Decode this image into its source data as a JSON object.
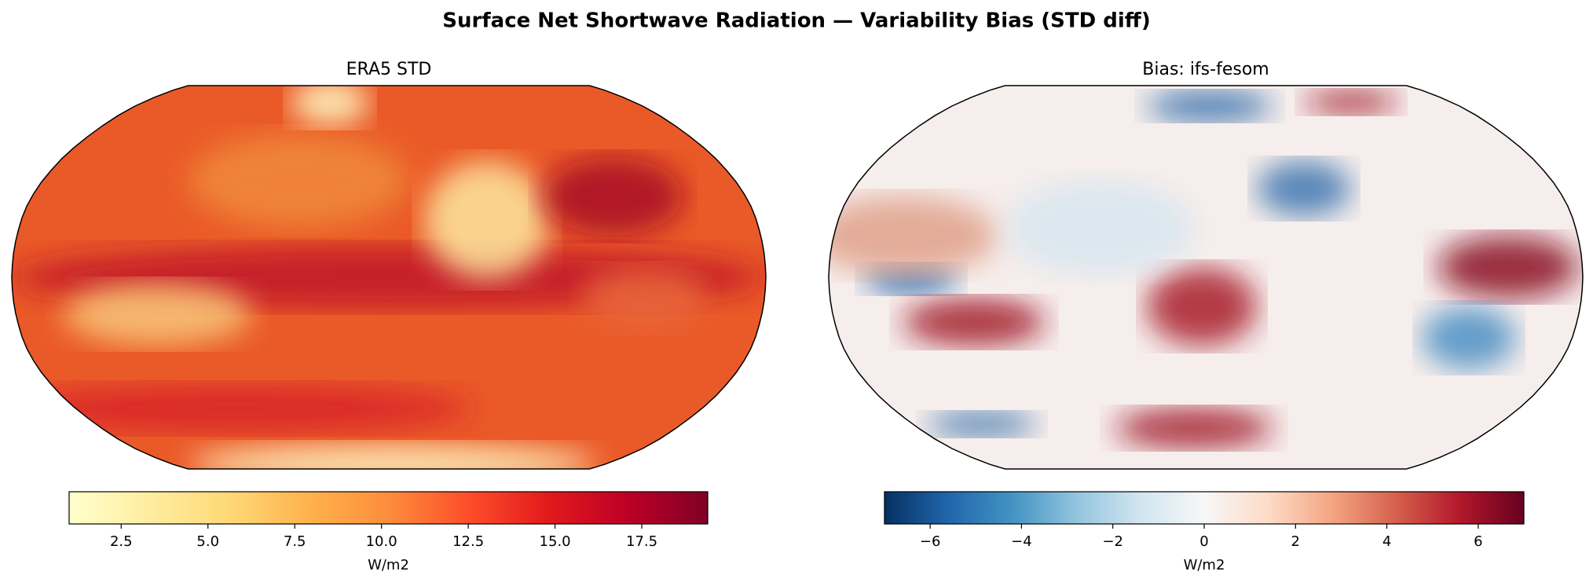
{
  "title": "Surface Net Shortwave Radiation — Variability Bias (STD diff)",
  "panels": [
    {
      "title": "ERA5 STD",
      "colorbar": {
        "label": "W/m2",
        "lim": [
          1,
          19.4
        ],
        "ticks": [
          2.5,
          {
            "value": 5,
            "label": "5.0"
          },
          7.5,
          {
            "value": 10,
            "label": "10.0"
          },
          12.5,
          {
            "value": 15,
            "label": "15.0"
          },
          17.5
        ],
        "colors": [
          "#ffffcc",
          "#ffeda0",
          "#fed976",
          "#feb24c",
          "#fd8d3c",
          "#fc4e2a",
          "#e31a1c",
          "#bd0026",
          "#800026"
        ]
      }
    },
    {
      "title": "Bias: ifs-fesom",
      "colorbar": {
        "label": "W/m2",
        "lim": [
          -7,
          7
        ],
        "ticks": [
          {
            "value": -6,
            "label": "−6"
          },
          {
            "value": -4,
            "label": "−4"
          },
          {
            "value": -2,
            "label": "−2"
          },
          0,
          2,
          4,
          6
        ],
        "colors": [
          "#053061",
          "#2166ac",
          "#4393c3",
          "#92c5de",
          "#d1e5f0",
          "#f7f7f7",
          "#fddbc7",
          "#f4a582",
          "#d6604d",
          "#b2182b",
          "#67001f"
        ]
      }
    }
  ]
}
